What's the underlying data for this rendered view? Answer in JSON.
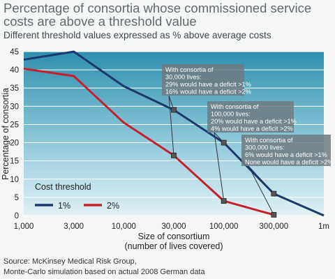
{
  "chart_data": {
    "type": "line",
    "title": "Percentage of consortia whose commissioned service costs are above a threshold value",
    "subtitle": "Different threshold values expressed as % above average costs",
    "xlabel": "Size of consortium",
    "xlabel_sub": "(number of lives covered)",
    "ylabel": "Percentage of consortia",
    "categories": [
      "1,000",
      "3,000",
      "10,000",
      "30,000",
      "100,000",
      "300,000",
      "1m"
    ],
    "ylim": [
      0,
      45
    ],
    "yticks": [
      0,
      5,
      10,
      15,
      20,
      25,
      30,
      35,
      40,
      45
    ],
    "grid": true,
    "legend": {
      "title": "Cost threshold",
      "position": "lower-left"
    },
    "series": [
      {
        "name": "1%",
        "color": "#1b3a6b",
        "values": [
          42.8,
          45,
          35.5,
          29,
          20,
          6,
          0
        ]
      },
      {
        "name": "2%",
        "color": "#c8202a",
        "values": [
          40.3,
          38.3,
          25.5,
          16.5,
          4,
          0.2,
          null
        ]
      }
    ],
    "annotations": [
      {
        "lines": [
          "With consortia of",
          "30,000 lives:",
          "29% would have a deficit >1%",
          "16% would have a deficit >2%"
        ]
      },
      {
        "lines": [
          "With consortia of",
          "100,000 lives:",
          "20% would have a deficit >1%",
          "4% would have a deficit >2%"
        ]
      },
      {
        "lines": [
          "With consortia of",
          "300,000 lives:",
          "6% would have a deficit >1%",
          "None would have a deficit >2%"
        ]
      }
    ]
  },
  "source_lines": [
    "Source: McKinsey Medical Risk Group,",
    "Monte-Carlo simulation based on actual 2008 German data"
  ]
}
